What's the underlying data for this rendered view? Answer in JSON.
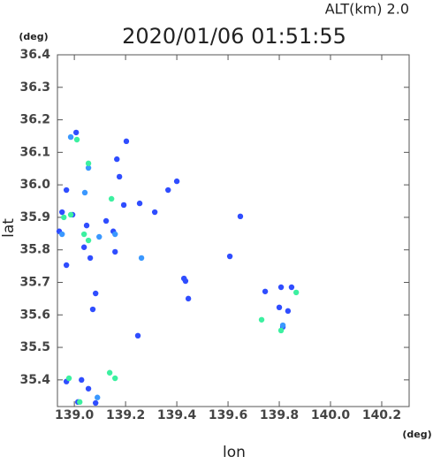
{
  "chart_data": {
    "type": "scatter",
    "title": "2020/01/06 01:51:55",
    "subtitle": "ALT(km) 2.0",
    "y_unit": "(deg)",
    "x_unit": "(deg)",
    "y_label": "lat",
    "x_label": "lon",
    "xlim": [
      138.934,
      140.307
    ],
    "ylim": [
      35.318,
      36.4
    ],
    "xticks": [
      {
        "value": 139,
        "label": "139.0"
      },
      139.2,
      139.4,
      139.6,
      139.8,
      {
        "value": 140,
        "label": "140.0"
      },
      140.2
    ],
    "yticks": [
      35.4,
      35.5,
      35.6,
      35.7,
      35.8,
      35.9,
      {
        "value": 36,
        "label": "36.0"
      },
      36.1,
      36.2,
      36.3,
      36.4
    ],
    "series": [
      {
        "color": "#2f4dff",
        "x": [
          139.007,
          138.969,
          139.048,
          138.952,
          138.941,
          138.993,
          139.038,
          139.124,
          139.152,
          139.159,
          139.062,
          139.083,
          139.072,
          139.248,
          138.969,
          139.028,
          139.055,
          139.014,
          139.083,
          139.434,
          139.445,
          139.607,
          139.8,
          139.834,
          139.814,
          139.745,
          139.807,
          139.848,
          139.203,
          139.166,
          139.176,
          138.969,
          139.193,
          139.255,
          139.314,
          139.366,
          139.4,
          139.428,
          139.648
        ],
        "values": [
          36.161,
          35.984,
          35.875,
          35.916,
          35.857,
          35.908,
          35.808,
          35.889,
          35.857,
          35.794,
          35.775,
          35.666,
          35.617,
          35.536,
          35.395,
          35.4,
          35.373,
          35.332,
          35.329,
          35.704,
          35.65,
          35.78,
          35.623,
          35.612,
          35.563,
          35.672,
          35.685,
          35.685,
          36.134,
          36.079,
          36.025,
          35.753,
          35.938,
          35.943,
          35.916,
          35.984,
          36.011,
          35.712,
          35.903
        ]
      },
      {
        "color": "#3a98ff",
        "x": [
          138.986,
          139.055,
          139.041,
          139.097,
          138.952,
          139.262,
          139.814,
          139.09,
          139.159
        ],
        "values": [
          36.147,
          36.052,
          35.976,
          35.84,
          35.848,
          35.775,
          35.568,
          35.346,
          35.848
        ]
      },
      {
        "color": "#3cf0a0",
        "x": [
          139.01,
          139.055,
          139.145,
          138.959,
          138.986,
          139.038,
          139.055,
          139.138,
          139.159,
          138.979,
          139.021,
          139.731,
          139.866,
          139.807
        ],
        "values": [
          36.139,
          36.066,
          35.957,
          35.9,
          35.908,
          35.848,
          35.829,
          35.422,
          35.405,
          35.405,
          35.332,
          35.585,
          35.669,
          35.552
        ]
      }
    ]
  }
}
